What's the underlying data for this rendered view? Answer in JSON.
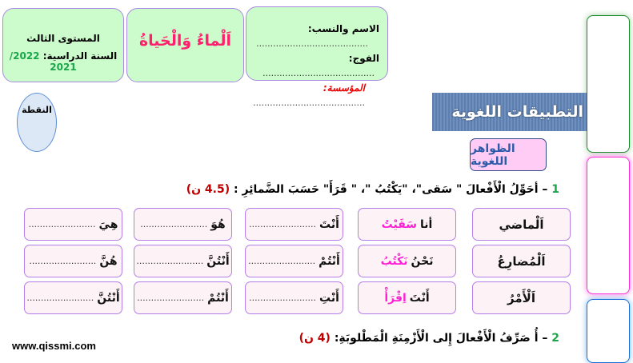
{
  "header": {
    "level": "المستوى الثالث",
    "year_label": "السنة الدراسية:",
    "year_value": "2022/ 2021",
    "title": "اَلْماءُ وَالْحَياةُ",
    "name_label": "الاسم والنسب:",
    "group_label": "الفوج:",
    "school_label": "المؤسسة:",
    "dots": "........................................"
  },
  "grade_label": "النقطة",
  "section_banner": "التطبيقات اللغوية",
  "subsection": "الظواهر اللغوية",
  "q1": {
    "num": "1",
    "text": "– أحَوِّلُ الْأَفْعالَ \" سَقى\"، \"يَكْتُبُ \"، \" قَرَأَ\" حَسَبَ الضَّمائِرِ :",
    "points": "(4.5 ن)"
  },
  "q2": {
    "num": "2",
    "text": "– أُ صَرِّفُ الْأَفْعالَ إِلى الْأَزْمِنَةِ الْمَطْلوبَةِ:",
    "points": "(4 ن)"
  },
  "table": {
    "rows": [
      {
        "tense": "اَلْماضي",
        "example_pronoun": "أنا",
        "example_verb": "سَقَيْتُ",
        "pronouns": [
          "أَنْتَ",
          "هُوَ",
          "هِيَ"
        ]
      },
      {
        "tense": "اَلْمُضارِعُ",
        "example_pronoun": "نَحْنُ",
        "example_verb": "نَكْتُبُ",
        "pronouns": [
          "أَنْتُمْ",
          "أَنْتُنَّ",
          "هُنَّ"
        ]
      },
      {
        "tense": "اَلْأَمْرُ",
        "example_pronoun": "أَنْتَ",
        "example_verb": "اِقْرَأْ",
        "pronouns": [
          "أَنْتِ",
          "أَنْتُمْ",
          "أَنْتُنَّ"
        ]
      }
    ],
    "blank": "........................"
  },
  "website": "www.qissmi.com",
  "colors": {
    "green": "#1aa64a",
    "red": "#c00000",
    "pink": "#ff1fd6",
    "box": "#ccfccc"
  }
}
